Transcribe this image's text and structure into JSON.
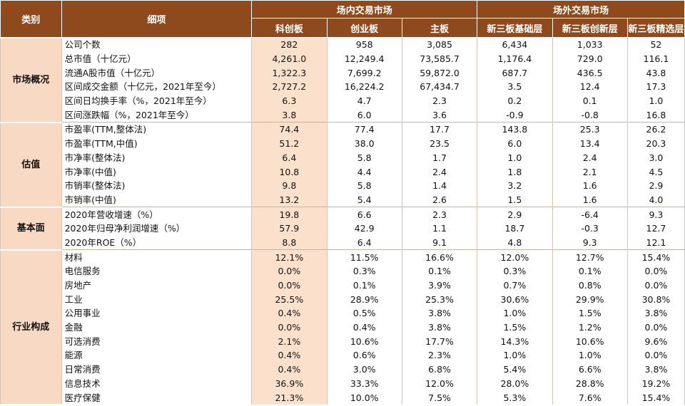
{
  "header": {
    "category": "类别",
    "detail": "细项",
    "group_in": "场内交易市场",
    "group_out": "场外交易市场",
    "columns": [
      "科创板",
      "创业板",
      "主板",
      "新三板基础层",
      "新三板创新层",
      "新三板精选层"
    ]
  },
  "sections": [
    {
      "name": "市场概况",
      "rows": [
        {
          "label": "公司个数",
          "values": [
            "282",
            "958",
            "3,085",
            "6,434",
            "1,033",
            "52"
          ]
        },
        {
          "label": "总市值（十亿元）",
          "values": [
            "4,261.0",
            "12,249.4",
            "73,585.7",
            "1,176.4",
            "729.0",
            "116.1"
          ]
        },
        {
          "label": "流通A股市值（十亿元）",
          "values": [
            "1,322.3",
            "7,699.2",
            "59,872.0",
            "687.7",
            "436.5",
            "43.8"
          ]
        },
        {
          "label": "区间成交金额（十亿元，2021年至今）",
          "values": [
            "2,727.2",
            "16,224.2",
            "67,434.7",
            "3.5",
            "12.4",
            "17.3"
          ]
        },
        {
          "label": "区间日均换手率（%，2021年至今）",
          "values": [
            "6.3",
            "4.7",
            "2.3",
            "0.2",
            "0.1",
            "1.0"
          ]
        },
        {
          "label": "区间涨跌幅（%，2021年至今）",
          "values": [
            "3.8",
            "6.0",
            "3.6",
            "-0.9",
            "-0.8",
            "16.8"
          ]
        }
      ]
    },
    {
      "name": "估值",
      "rows": [
        {
          "label": "市盈率(TTM,整体法)",
          "values": [
            "74.4",
            "77.4",
            "17.7",
            "143.8",
            "25.3",
            "26.2"
          ]
        },
        {
          "label": "市盈率(TTM,中值)",
          "values": [
            "51.2",
            "38.0",
            "23.5",
            "6.0",
            "13.4",
            "20.3"
          ]
        },
        {
          "label": "市净率(整体法)",
          "values": [
            "6.4",
            "5.8",
            "1.7",
            "1.0",
            "2.4",
            "3.0"
          ]
        },
        {
          "label": "市净率(中值)",
          "values": [
            "10.8",
            "4.4",
            "2.4",
            "1.8",
            "2.1",
            "4.5"
          ]
        },
        {
          "label": "市销率(整体法)",
          "values": [
            "9.8",
            "5.8",
            "1.4",
            "3.2",
            "1.6",
            "2.9"
          ]
        },
        {
          "label": "市销率(中值)",
          "values": [
            "13.2",
            "5.4",
            "2.6",
            "1.5",
            "1.6",
            "4.0"
          ]
        }
      ]
    },
    {
      "name": "基本面",
      "rows": [
        {
          "label": "2020年营收增速（%）",
          "values": [
            "19.8",
            "6.6",
            "2.3",
            "2.9",
            "-6.4",
            "9.3"
          ]
        },
        {
          "label": "2020年归母净利润增速（%）",
          "values": [
            "57.9",
            "42.9",
            "1.1",
            "18.7",
            "-0.3",
            "12.7"
          ]
        },
        {
          "label": "2020年ROE（%）",
          "values": [
            "8.8",
            "6.4",
            "9.1",
            "4.8",
            "9.3",
            "12.1"
          ]
        }
      ]
    },
    {
      "name": "行业构成",
      "rows": [
        {
          "label": "材料",
          "values": [
            "12.1%",
            "11.5%",
            "16.6%",
            "12.0%",
            "12.7%",
            "15.4%"
          ]
        },
        {
          "label": "电信服务",
          "values": [
            "0.0%",
            "0.3%",
            "0.1%",
            "0.3%",
            "0.1%",
            "0.0%"
          ]
        },
        {
          "label": "房地产",
          "values": [
            "0.0%",
            "0.1%",
            "3.9%",
            "0.7%",
            "0.8%",
            "0.0%"
          ]
        },
        {
          "label": "工业",
          "values": [
            "25.5%",
            "28.9%",
            "25.3%",
            "30.6%",
            "29.9%",
            "30.8%"
          ]
        },
        {
          "label": "公用事业",
          "values": [
            "0.4%",
            "0.5%",
            "3.8%",
            "1.0%",
            "1.5%",
            "3.8%"
          ]
        },
        {
          "label": "金融",
          "values": [
            "0.0%",
            "0.4%",
            "3.8%",
            "1.5%",
            "1.2%",
            "0.0%"
          ]
        },
        {
          "label": "可选消费",
          "values": [
            "2.1%",
            "10.6%",
            "17.7%",
            "14.3%",
            "10.6%",
            "9.6%"
          ]
        },
        {
          "label": "能源",
          "values": [
            "0.4%",
            "0.6%",
            "2.3%",
            "1.0%",
            "1.0%",
            "0.0%"
          ]
        },
        {
          "label": "日常消费",
          "values": [
            "0.4%",
            "3.0%",
            "6.8%",
            "5.4%",
            "6.6%",
            "3.8%"
          ]
        },
        {
          "label": "信息技术",
          "values": [
            "36.9%",
            "33.3%",
            "12.0%",
            "28.0%",
            "28.8%",
            "19.2%"
          ]
        },
        {
          "label": "医疗保健",
          "values": [
            "21.3%",
            "10.0%",
            "7.5%",
            "5.3%",
            "7.6%",
            "15.4%"
          ]
        }
      ]
    }
  ],
  "colors": {
    "header_bg": "#8e4a1d",
    "header_text": "#ffffff",
    "category_bg": "#f8d9c4",
    "highlight_col_bg": "#fbe0cc"
  }
}
